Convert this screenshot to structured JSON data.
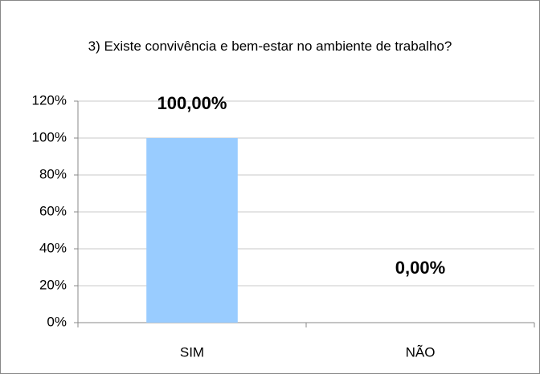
{
  "chart_data": {
    "type": "bar",
    "title": "3) Existe convivência e bem-estar no ambiente de trabalho?",
    "categories": [
      "SIM",
      "NÃO"
    ],
    "values": [
      100,
      0
    ],
    "value_labels": [
      "100,00%",
      "0,00%"
    ],
    "color": "#99ccff",
    "ylim": [
      0,
      120
    ],
    "yticks": [
      {
        "value": 0,
        "label": "0%"
      },
      {
        "value": 20,
        "label": "20%"
      },
      {
        "value": 40,
        "label": "40%"
      },
      {
        "value": 60,
        "label": "60%"
      },
      {
        "value": 80,
        "label": "80%"
      },
      {
        "value": 100,
        "label": "100%"
      },
      {
        "value": 120,
        "label": "120%"
      }
    ],
    "grid": true
  }
}
